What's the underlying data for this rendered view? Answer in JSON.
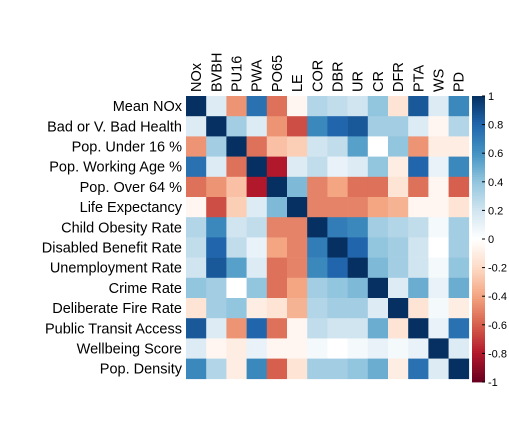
{
  "chart_data": {
    "type": "heatmap",
    "title": "",
    "row_labels": [
      "Mean NOx",
      "Bad or V. Bad Health",
      "Pop. Under 16 %",
      "Pop. Working Age %",
      "Pop. Over 64 %",
      "Life Expectancy",
      "Child Obesity Rate",
      "Disabled Benefit Rate",
      "Unemployment Rate",
      "Crime Rate",
      "Deliberate Fire Rate",
      "Public Transit Access",
      "Wellbeing Score",
      "Pop. Density"
    ],
    "col_labels": [
      "NOx",
      "BVBH",
      "PU16",
      "PWA",
      "PO65",
      "LE",
      "COR",
      "DBR",
      "UR",
      "CR",
      "DFR",
      "PTA",
      "WS",
      "PD"
    ],
    "values": [
      [
        1.0,
        0.15,
        -0.45,
        0.75,
        -0.55,
        -0.05,
        0.3,
        0.25,
        0.2,
        0.4,
        -0.15,
        0.85,
        0.15,
        0.65
      ],
      [
        0.15,
        1.0,
        0.35,
        0.15,
        -0.45,
        -0.65,
        0.65,
        0.8,
        0.85,
        0.35,
        0.35,
        0.15,
        -0.05,
        0.3
      ],
      [
        -0.45,
        0.35,
        1.0,
        -0.55,
        -0.3,
        -0.25,
        0.2,
        0.25,
        0.55,
        0.0,
        0.4,
        -0.45,
        -0.1,
        -0.1
      ],
      [
        0.75,
        0.15,
        -0.55,
        1.0,
        -0.8,
        0.15,
        0.25,
        0.1,
        0.15,
        0.4,
        -0.1,
        0.8,
        0.1,
        0.65
      ],
      [
        -0.55,
        -0.45,
        -0.3,
        -0.8,
        1.0,
        0.45,
        -0.5,
        -0.4,
        -0.55,
        -0.55,
        -0.15,
        -0.55,
        -0.05,
        -0.6
      ],
      [
        -0.05,
        -0.65,
        -0.25,
        0.15,
        0.45,
        1.0,
        -0.5,
        -0.5,
        -0.5,
        -0.4,
        -0.35,
        -0.05,
        -0.05,
        -0.15
      ],
      [
        0.3,
        0.65,
        0.2,
        0.25,
        -0.5,
        -0.5,
        1.0,
        0.7,
        0.65,
        0.35,
        0.3,
        0.25,
        0.05,
        0.35
      ],
      [
        0.25,
        0.8,
        0.25,
        0.1,
        -0.4,
        -0.5,
        0.7,
        1.0,
        0.8,
        0.4,
        0.35,
        0.2,
        0.0,
        0.35
      ],
      [
        0.2,
        0.85,
        0.55,
        0.15,
        -0.55,
        -0.5,
        0.65,
        0.8,
        1.0,
        0.45,
        0.35,
        0.2,
        0.05,
        0.4
      ],
      [
        0.4,
        0.35,
        0.0,
        0.4,
        -0.55,
        -0.4,
        0.35,
        0.4,
        0.45,
        1.0,
        0.15,
        0.5,
        0.1,
        0.5
      ],
      [
        -0.15,
        0.35,
        0.4,
        -0.1,
        -0.15,
        -0.35,
        0.3,
        0.35,
        0.35,
        0.15,
        1.0,
        -0.15,
        0.05,
        -0.1
      ],
      [
        0.85,
        0.15,
        -0.45,
        0.8,
        -0.55,
        -0.05,
        0.25,
        0.2,
        0.2,
        0.5,
        -0.15,
        1.0,
        0.1,
        0.75
      ],
      [
        0.15,
        -0.05,
        -0.1,
        0.1,
        -0.05,
        -0.05,
        0.05,
        0.0,
        0.05,
        0.1,
        0.05,
        0.1,
        1.0,
        0.15
      ],
      [
        0.65,
        0.3,
        -0.1,
        0.65,
        -0.6,
        -0.15,
        0.35,
        0.35,
        0.4,
        0.5,
        -0.1,
        0.75,
        0.15,
        1.0
      ]
    ],
    "colorbar": {
      "range": [
        -1,
        1
      ],
      "ticks": [
        "1",
        "0.8",
        "0.6",
        "0.4",
        "0.2",
        "0",
        "-0.2",
        "-0.4",
        "-0.6",
        "-0.8",
        "-1"
      ],
      "colors": {
        "-1": "#67001f",
        "-0.8": "#b2182b",
        "-0.6": "#d6604d",
        "-0.4": "#f4a582",
        "-0.2": "#fddbc7",
        "0": "#ffffff",
        "0.2": "#d1e5f0",
        "0.4": "#92c5de",
        "0.6": "#4393c3",
        "0.8": "#2166ac",
        "1": "#053061"
      }
    }
  }
}
